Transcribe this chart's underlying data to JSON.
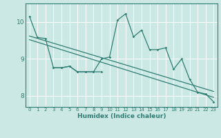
{
  "title": "",
  "xlabel": "Humidex (Indice chaleur)",
  "background_color": "#cce8e4",
  "line_color": "#2e7d72",
  "grid_color": "#ffffff",
  "xlim": [
    -0.5,
    23.5
  ],
  "ylim": [
    7.7,
    10.5
  ],
  "xticks": [
    0,
    1,
    2,
    3,
    4,
    5,
    6,
    7,
    8,
    9,
    10,
    11,
    12,
    13,
    14,
    15,
    16,
    17,
    18,
    19,
    20,
    21,
    22,
    23
  ],
  "yticks": [
    8,
    9,
    10
  ],
  "series1_x": [
    0,
    1,
    2,
    3,
    4,
    5,
    6,
    7,
    8,
    9,
    10,
    11,
    12,
    13,
    14,
    15,
    16,
    17,
    18,
    19,
    20,
    21,
    22,
    23
  ],
  "series1_y": [
    10.15,
    9.58,
    9.55,
    8.76,
    8.76,
    8.8,
    8.65,
    8.65,
    8.65,
    9.0,
    9.05,
    10.05,
    10.22,
    9.6,
    9.78,
    9.25,
    9.25,
    9.3,
    8.72,
    9.0,
    8.45,
    8.1,
    8.05,
    7.84
  ],
  "series2_x": [
    0,
    23
  ],
  "series2_y": [
    9.62,
    8.12
  ],
  "series3_x": [
    0,
    23
  ],
  "series3_y": [
    9.52,
    7.96
  ],
  "series4_x": [
    3,
    4,
    5,
    6,
    7,
    8,
    9
  ],
  "series4_y": [
    8.76,
    8.76,
    8.8,
    8.65,
    8.65,
    8.65,
    8.65
  ]
}
